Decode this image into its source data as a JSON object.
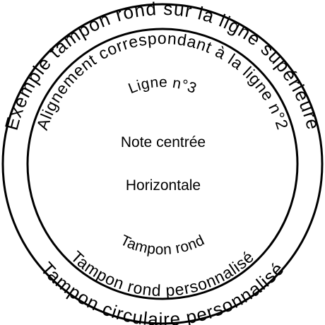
{
  "colors": {
    "ink": "#000000",
    "background": "#ffffff"
  },
  "stamp": {
    "line1_top": "Exemple tampon rond sur la ligne supérieure",
    "line2_top": "Alignement correspondant à la ligne n°2",
    "line3_top": "Ligne n°3",
    "center_line1": "Note centrée",
    "center_line2": "Horizontale",
    "line3_bottom": "Tampon rond",
    "line2_bottom": "Tampon rond personnalisé",
    "line1_bottom": "Tampon circulaire personnalisé"
  }
}
